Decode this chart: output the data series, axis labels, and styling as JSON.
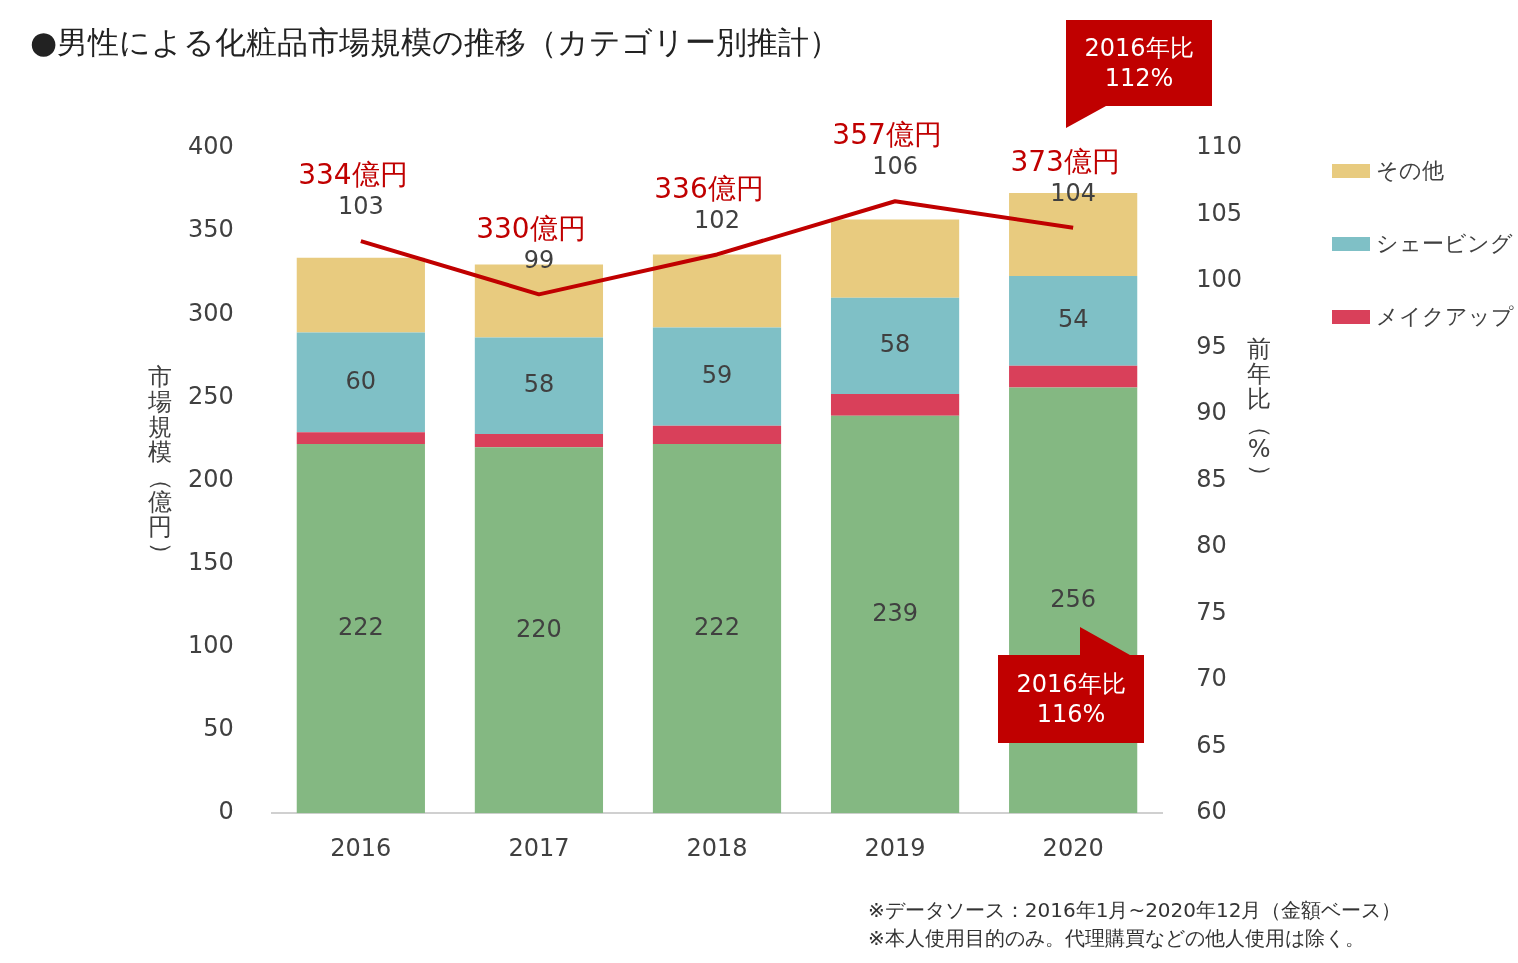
{
  "chart_data": {
    "type": "bar",
    "title": "●男性による化粧品市場規模の推移（カテゴリー別推計）",
    "ylabel": "市場規模（億円）",
    "y2label": "前年比（%）",
    "categories": [
      "2016",
      "2017",
      "2018",
      "2019",
      "2020"
    ],
    "stacked": true,
    "series": [
      {
        "color": "#84b882",
        "values": [
          222,
          220,
          222,
          239,
          256
        ],
        "value_labels": [
          "222",
          "220",
          "222",
          "239",
          "256"
        ]
      },
      {
        "name": "メイクアップ",
        "color": "#d9405a",
        "values": [
          7,
          8,
          11,
          13,
          13
        ]
      },
      {
        "name": "シェービング",
        "color": "#7fc0c6",
        "values": [
          60,
          58,
          59,
          58,
          54
        ],
        "value_labels": [
          "60",
          "58",
          "59",
          "58",
          "54"
        ]
      },
      {
        "name": "その他",
        "color": "#e8cb7f",
        "values": [
          45,
          44,
          44,
          47,
          50
        ]
      },
      {
        "type": "line",
        "axis": "y2",
        "color": "#c00000",
        "values": [
          103,
          99,
          102,
          106,
          104
        ],
        "value_labels": [
          "103",
          "99",
          "102",
          "106",
          "104"
        ]
      }
    ],
    "totals": [
      "334億円",
      "330億円",
      "336億円",
      "357億円",
      "373億円"
    ],
    "ylim": [
      0,
      400
    ],
    "yticks": [
      0,
      50,
      100,
      150,
      200,
      250,
      300,
      350,
      400
    ],
    "y2lim": [
      60,
      110
    ],
    "y2ticks": [
      60,
      65,
      70,
      75,
      80,
      85,
      90,
      95,
      100,
      105,
      110
    ],
    "grid": false,
    "legend": "top right",
    "marker": "none",
    "line_style": "solid",
    "annotations": [
      "2016年比\n112%",
      "2016年比\n116%",
      "※データソース：2016年1月~2020年12月（金額ベース）",
      "※本人使用目的のみ。代理購買などの他人使用は除く。"
    ]
  }
}
